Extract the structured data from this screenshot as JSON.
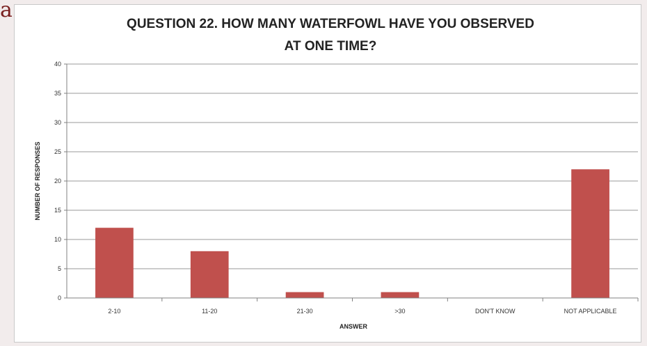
{
  "corner_mark": "a",
  "chart_data": {
    "type": "bar",
    "title_lines": [
      "QUESTION  22.  HOW MANY WATERFOWL HAVE YOU OBSERVED",
      "AT ONE TIME?"
    ],
    "categories": [
      "2-10",
      "11-20",
      "21-30",
      ">30",
      "DON'T KNOW",
      "NOT APPLICABLE"
    ],
    "values": [
      12,
      8,
      1,
      1,
      0,
      22
    ],
    "xlabel": "ANSWER",
    "ylabel": "NUMBER OF RESPONSES",
    "ylim": [
      0,
      40
    ],
    "yticks": [
      "0",
      "5",
      "10",
      "15",
      "20",
      "25",
      "30",
      "35",
      "40"
    ],
    "grid": true,
    "bar_color": "#c0504d"
  }
}
